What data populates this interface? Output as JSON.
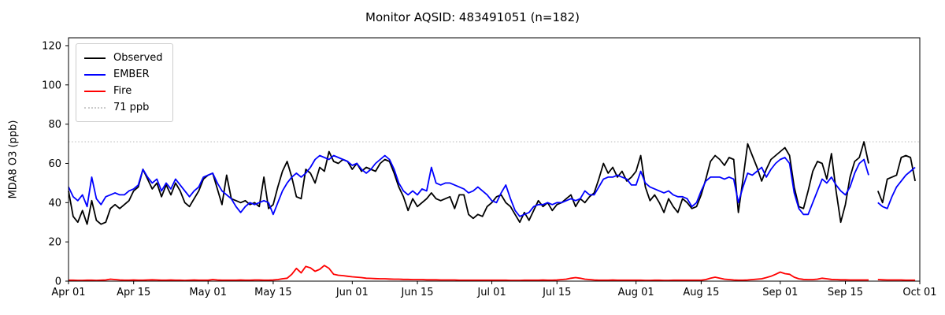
{
  "title": "Monitor AQSID: 483491051 (n=182)",
  "axes": {
    "ylabel": "MDA8 O3 (ppb)",
    "ytick_values": [
      0,
      20,
      40,
      60,
      80,
      100,
      120
    ],
    "xticks": [
      {
        "label": "Apr 01",
        "day": 0
      },
      {
        "label": "Apr 15",
        "day": 14
      },
      {
        "label": "May 01",
        "day": 30
      },
      {
        "label": "May 15",
        "day": 44
      },
      {
        "label": "Jun 01",
        "day": 61
      },
      {
        "label": "Jun 15",
        "day": 75
      },
      {
        "label": "Jul 01",
        "day": 91
      },
      {
        "label": "Jul 15",
        "day": 105
      },
      {
        "label": "Aug 01",
        "day": 122
      },
      {
        "label": "Aug 15",
        "day": 136
      },
      {
        "label": "Sep 01",
        "day": 153
      },
      {
        "label": "Sep 15",
        "day": 167
      },
      {
        "label": "Oct 01",
        "day": 183
      }
    ]
  },
  "legend": {
    "items": [
      {
        "label": "Observed",
        "color": "#000000",
        "style": "solid"
      },
      {
        "label": "EMBER",
        "color": "#0000ff",
        "style": "solid"
      },
      {
        "label": "Fire",
        "color": "#ff0000",
        "style": "solid"
      },
      {
        "label": "71 ppb",
        "color": "#cccccc",
        "style": "dotted"
      }
    ]
  },
  "chart_data": {
    "type": "line",
    "title": "Monitor AQSID: 483491051 (n=182)",
    "xlabel": "",
    "ylabel": "MDA8 O3 (ppb)",
    "ylim": [
      0,
      124
    ],
    "x_domain_days": 183,
    "x_start": "Apr 01",
    "x_end": "Oct 01",
    "grid": false,
    "legend_position": "upper left",
    "threshold": {
      "value": 71,
      "label": "71 ppb",
      "color": "#cccccc",
      "style": "dotted"
    },
    "missing_day_index": 173,
    "series": [
      {
        "name": "Observed",
        "color": "#000000",
        "values": [
          46,
          33,
          30,
          36,
          29,
          41,
          31,
          29,
          30,
          37,
          39,
          37,
          39,
          41,
          46,
          48,
          57,
          52,
          47,
          50,
          43,
          49,
          44,
          50,
          46,
          40,
          38,
          42,
          46,
          52,
          54,
          55,
          47,
          39,
          54,
          42,
          41,
          40,
          41,
          39,
          40,
          38,
          53,
          37,
          39,
          48,
          56,
          61,
          53,
          43,
          42,
          57,
          55,
          50,
          58,
          56,
          66,
          61,
          60,
          62,
          61,
          57,
          60,
          56,
          58,
          57,
          56,
          60,
          62,
          61,
          55,
          48,
          43,
          36,
          42,
          38,
          40,
          42,
          45,
          42,
          41,
          42,
          43,
          37,
          44,
          44,
          34,
          32,
          34,
          33,
          38,
          40,
          43,
          44,
          40,
          38,
          34,
          30,
          35,
          31,
          36,
          41,
          38,
          40,
          36,
          39,
          40,
          42,
          44,
          38,
          42,
          40,
          43,
          45,
          52,
          60,
          55,
          58,
          53,
          56,
          51,
          53,
          56,
          64,
          48,
          41,
          44,
          40,
          35,
          42,
          38,
          35,
          42,
          40,
          37,
          38,
          44,
          52,
          61,
          64,
          62,
          59,
          63,
          62,
          35,
          52,
          70,
          64,
          58,
          51,
          57,
          62,
          64,
          66,
          68,
          64,
          48,
          38,
          37,
          46,
          56,
          61,
          60,
          52,
          65,
          46,
          30,
          39,
          53,
          61,
          63,
          71,
          60,
          null,
          46,
          40,
          52,
          53,
          54,
          63,
          64,
          63,
          51
        ]
      },
      {
        "name": "EMBER",
        "color": "#0000ff",
        "values": [
          48,
          43,
          41,
          44,
          38,
          53,
          42,
          39,
          43,
          44,
          45,
          44,
          44,
          46,
          47,
          49,
          57,
          53,
          50,
          52,
          46,
          50,
          47,
          52,
          49,
          46,
          43,
          46,
          48,
          53,
          54,
          55,
          50,
          46,
          44,
          42,
          38,
          35,
          38,
          40,
          39,
          40,
          41,
          40,
          34,
          40,
          46,
          50,
          53,
          55,
          53,
          55,
          58,
          62,
          64,
          63,
          62,
          64,
          63,
          62,
          61,
          59,
          60,
          57,
          55,
          57,
          60,
          62,
          64,
          62,
          57,
          50,
          46,
          44,
          46,
          44,
          47,
          46,
          58,
          50,
          49,
          50,
          50,
          49,
          48,
          47,
          45,
          46,
          48,
          46,
          44,
          41,
          40,
          45,
          49,
          42,
          36,
          33,
          34,
          35,
          38,
          39,
          39,
          40,
          39,
          40,
          40,
          41,
          42,
          41,
          42,
          46,
          44,
          44,
          48,
          52,
          53,
          53,
          54,
          53,
          52,
          49,
          49,
          56,
          50,
          48,
          47,
          46,
          45,
          46,
          44,
          43,
          43,
          42,
          38,
          40,
          46,
          51,
          53,
          53,
          53,
          52,
          53,
          52,
          40,
          48,
          55,
          54,
          56,
          58,
          53,
          57,
          60,
          62,
          63,
          60,
          45,
          37,
          34,
          34,
          40,
          46,
          52,
          50,
          53,
          49,
          46,
          44,
          48,
          55,
          60,
          62,
          54,
          null,
          40,
          38,
          37,
          43,
          48,
          51,
          54,
          56,
          58
        ]
      },
      {
        "name": "Fire",
        "color": "#ff0000",
        "values": [
          0.5,
          0.5,
          0.4,
          0.4,
          0.5,
          0.5,
          0.4,
          0.5,
          0.6,
          1.0,
          0.8,
          0.6,
          0.5,
          0.5,
          0.6,
          0.5,
          0.5,
          0.6,
          0.7,
          0.6,
          0.5,
          0.5,
          0.6,
          0.5,
          0.5,
          0.4,
          0.5,
          0.6,
          0.5,
          0.5,
          0.5,
          0.8,
          0.6,
          0.5,
          0.5,
          0.5,
          0.5,
          0.6,
          0.5,
          0.5,
          0.6,
          0.6,
          0.5,
          0.5,
          0.6,
          0.8,
          1.2,
          1.5,
          3.5,
          6.5,
          4.2,
          7.5,
          6.8,
          5.0,
          6.0,
          8.0,
          6.5,
          3.5,
          3.0,
          2.8,
          2.5,
          2.2,
          2.0,
          1.8,
          1.5,
          1.4,
          1.3,
          1.2,
          1.2,
          1.1,
          1.0,
          1.0,
          0.9,
          0.9,
          0.8,
          0.8,
          0.8,
          0.7,
          0.7,
          0.7,
          0.6,
          0.6,
          0.6,
          0.6,
          0.5,
          0.5,
          0.5,
          0.5,
          0.5,
          0.5,
          0.5,
          0.5,
          0.5,
          0.5,
          0.5,
          0.4,
          0.4,
          0.4,
          0.5,
          0.5,
          0.5,
          0.5,
          0.6,
          0.5,
          0.5,
          0.6,
          0.8,
          1.0,
          1.5,
          1.8,
          1.5,
          1.0,
          0.8,
          0.6,
          0.5,
          0.5,
          0.5,
          0.6,
          0.5,
          0.5,
          0.5,
          0.5,
          0.5,
          0.5,
          0.4,
          0.4,
          0.5,
          0.5,
          0.4,
          0.4,
          0.5,
          0.5,
          0.5,
          0.5,
          0.5,
          0.5,
          0.5,
          0.8,
          1.5,
          2.0,
          1.5,
          1.0,
          0.8,
          0.6,
          0.5,
          0.5,
          0.6,
          0.8,
          1.0,
          1.2,
          1.8,
          2.5,
          3.5,
          4.6,
          3.8,
          3.5,
          2.0,
          1.2,
          0.9,
          0.8,
          0.8,
          1.0,
          1.5,
          1.2,
          0.9,
          0.8,
          0.7,
          0.7,
          0.6,
          0.6,
          0.6,
          0.6,
          0.6,
          null,
          0.8,
          0.7,
          0.6,
          0.6,
          0.6,
          0.6,
          0.5,
          0.5,
          0.5
        ]
      }
    ]
  }
}
